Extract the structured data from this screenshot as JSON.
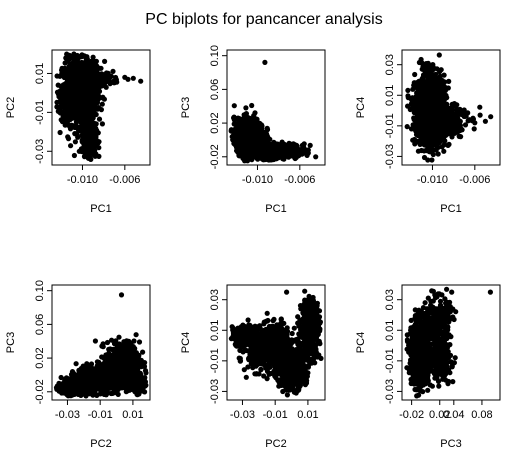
{
  "title": "PC biplots for pancancer analysis",
  "chart_data": [
    {
      "type": "scatter",
      "xlabel": "PC1",
      "ylabel": "PC2",
      "xlim": [
        -0.0125,
        -0.004
      ],
      "ylim": [
        -0.035,
        0.02
      ],
      "xticks": [
        -0.01,
        -0.006
      ],
      "xtick_labels": [
        "-0.010",
        "-0.006"
      ],
      "yticks": [
        -0.03,
        -0.01,
        0.01
      ],
      "ytick_labels": [
        "-0.03",
        "-0.01",
        "0.01"
      ],
      "point_color": "#000000",
      "clusters": [
        {
          "cx": -0.0103,
          "cy": 0.0,
          "sx": 0.0008,
          "sy": 0.008,
          "n": 1400
        },
        {
          "cx": -0.0093,
          "cy": -0.024,
          "sx": 0.0003,
          "sy": 0.004,
          "n": 400
        },
        {
          "cx": -0.0095,
          "cy": 0.008,
          "sx": 0.001,
          "sy": 0.003,
          "n": 300
        }
      ],
      "outliers": [
        [
          -0.0045,
          0.006
        ],
        [
          -0.0052,
          0.0075
        ],
        [
          -0.006,
          0.008
        ],
        [
          -0.0068,
          0.0068
        ],
        [
          -0.007,
          0.0052
        ],
        [
          -0.0057,
          0.007
        ]
      ]
    },
    {
      "type": "scatter",
      "xlabel": "PC1",
      "ylabel": "PC3",
      "xlim": [
        -0.0125,
        -0.004
      ],
      "ylim": [
        -0.025,
        0.102
      ],
      "xticks": [
        -0.01,
        -0.006
      ],
      "xtick_labels": [
        "-0.010",
        "-0.006"
      ],
      "yticks": [
        -0.02,
        0.02,
        0.06,
        0.1
      ],
      "ytick_labels": [
        "-0.02",
        "0.02",
        "0.06",
        "0.10"
      ],
      "point_color": "#000000",
      "clusters": [
        {
          "cx": -0.0108,
          "cy": 0.005,
          "sx": 0.0007,
          "sy": 0.01,
          "n": 800
        },
        {
          "cx": -0.0092,
          "cy": -0.014,
          "sx": 0.0009,
          "sy": 0.004,
          "n": 800
        },
        {
          "cx": -0.007,
          "cy": -0.012,
          "sx": 0.0008,
          "sy": 0.004,
          "n": 150
        }
      ],
      "outliers": [
        [
          -0.0093,
          0.092
        ],
        [
          -0.0045,
          -0.02
        ],
        [
          -0.0052,
          -0.012
        ],
        [
          -0.006,
          -0.015
        ]
      ]
    },
    {
      "type": "scatter",
      "xlabel": "PC1",
      "ylabel": "PC4",
      "xlim": [
        -0.0125,
        -0.004
      ],
      "ylim": [
        -0.033,
        0.037
      ],
      "xticks": [
        -0.01,
        -0.006
      ],
      "xtick_labels": [
        "-0.010",
        "-0.006"
      ],
      "yticks": [
        -0.03,
        -0.01,
        0.01,
        0.03
      ],
      "ytick_labels": [
        "-0.03",
        "-0.01",
        "0.01",
        "0.03"
      ],
      "point_color": "#000000",
      "clusters": [
        {
          "cx": -0.0102,
          "cy": 0.0,
          "sx": 0.0007,
          "sy": 0.011,
          "n": 1500
        },
        {
          "cx": -0.0085,
          "cy": -0.005,
          "sx": 0.0009,
          "sy": 0.006,
          "n": 200
        }
      ],
      "outliers": [
        [
          -0.0045,
          -0.004
        ],
        [
          -0.0055,
          -0.003
        ],
        [
          -0.006,
          -0.008
        ],
        [
          -0.0065,
          -0.006
        ],
        [
          -0.005,
          -0.007
        ]
      ]
    },
    {
      "type": "scatter",
      "xlabel": "PC2",
      "ylabel": "PC3",
      "xlim": [
        -0.037,
        0.018
      ],
      "ylim": [
        -0.025,
        0.102
      ],
      "xticks": [
        -0.03,
        -0.01,
        0.01
      ],
      "xtick_labels": [
        "-0.03",
        "-0.01",
        "0.01"
      ],
      "yticks": [
        -0.02,
        0.02,
        0.06,
        0.1
      ],
      "ytick_labels": [
        "-0.02",
        "0.02",
        "0.06",
        "0.10"
      ],
      "point_color": "#000000",
      "clusters": [
        {
          "cx": -0.026,
          "cy": -0.015,
          "sx": 0.005,
          "sy": 0.004,
          "n": 500
        },
        {
          "cx": -0.01,
          "cy": -0.005,
          "sx": 0.007,
          "sy": 0.008,
          "n": 700
        },
        {
          "cx": 0.004,
          "cy": 0.015,
          "sx": 0.005,
          "sy": 0.012,
          "n": 500
        },
        {
          "cx": 0.012,
          "cy": -0.01,
          "sx": 0.003,
          "sy": 0.006,
          "n": 200
        }
      ],
      "outliers": [
        [
          0.003,
          0.095
        ]
      ]
    },
    {
      "type": "scatter",
      "xlabel": "PC2",
      "ylabel": "PC4",
      "xlim": [
        -0.037,
        0.018
      ],
      "ylim": [
        -0.033,
        0.037
      ],
      "xticks": [
        -0.03,
        -0.01,
        0.01
      ],
      "xtick_labels": [
        "-0.03",
        "-0.01",
        "0.01"
      ],
      "yticks": [
        -0.03,
        -0.01,
        0.01,
        0.03
      ],
      "ytick_labels": [
        "-0.03",
        "-0.01",
        "0.01",
        "0.03"
      ],
      "point_color": "#000000",
      "clusters": [
        {
          "cx": -0.028,
          "cy": 0.006,
          "sx": 0.004,
          "sy": 0.003,
          "n": 400
        },
        {
          "cx": -0.012,
          "cy": -0.002,
          "sx": 0.007,
          "sy": 0.007,
          "n": 800
        },
        {
          "cx": 0.0,
          "cy": -0.016,
          "sx": 0.004,
          "sy": 0.006,
          "n": 500
        },
        {
          "cx": 0.011,
          "cy": 0.012,
          "sx": 0.003,
          "sy": 0.009,
          "n": 400
        }
      ],
      "outliers": [
        [
          -0.003,
          0.035
        ]
      ]
    },
    {
      "type": "scatter",
      "xlabel": "PC3",
      "ylabel": "PC4",
      "xlim": [
        -0.028,
        0.1
      ],
      "ylim": [
        -0.033,
        0.037
      ],
      "xticks": [
        -0.02,
        0.02,
        0.04,
        0.08
      ],
      "xtick_labels": [
        "-0.02",
        "0.02",
        "0.04",
        "0.08"
      ],
      "yticks": [
        -0.03,
        -0.01,
        0.01,
        0.03
      ],
      "ytick_labels": [
        "-0.03",
        "-0.01",
        "0.01",
        "0.03"
      ],
      "point_color": "#000000",
      "clusters": [
        {
          "cx": -0.008,
          "cy": -0.005,
          "sx": 0.006,
          "sy": 0.01,
          "n": 1300
        },
        {
          "cx": 0.015,
          "cy": 0.015,
          "sx": 0.01,
          "sy": 0.008,
          "n": 300
        },
        {
          "cx": 0.02,
          "cy": -0.01,
          "sx": 0.008,
          "sy": 0.006,
          "n": 200
        }
      ],
      "outliers": [
        [
          0.092,
          0.035
        ],
        [
          0.037,
          0.035
        ]
      ]
    }
  ]
}
